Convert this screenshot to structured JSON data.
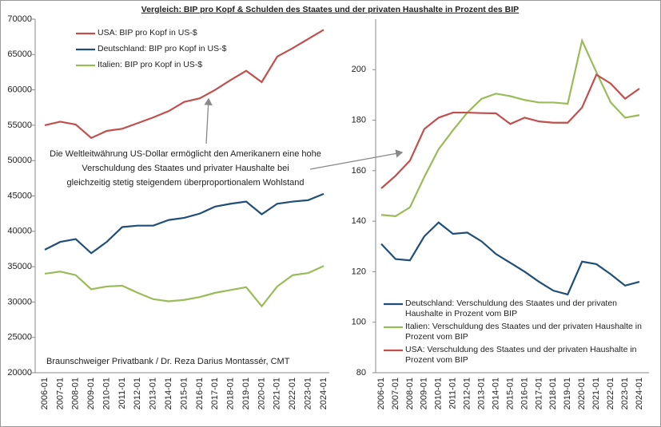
{
  "title": "Vergleich: BIP pro Kopf & Schulden des Staates und der privaten Haushalte in Prozent des BIP",
  "chart_data": [
    {
      "type": "line",
      "categories": [
        "2006-01",
        "2007-01",
        "2008-01",
        "2009-01",
        "2010-01",
        "2011-01",
        "2012-01",
        "2013-01",
        "2014-01",
        "2015-01",
        "2016-01",
        "2017-01",
        "2018-01",
        "2019-01",
        "2020-01",
        "2021-01",
        "2022-01",
        "2023-01",
        "2024-01"
      ],
      "series": [
        {
          "name": "USA: BIP pro Kopf in US-$",
          "color": "#c0504d",
          "values": [
            55000,
            55500,
            55100,
            53200,
            54200,
            54500,
            55300,
            56100,
            57000,
            58300,
            58800,
            60000,
            61400,
            62700,
            61100,
            64700,
            65900,
            67200,
            68500
          ]
        },
        {
          "name": "Deutschland: BIP pro Kopf in US-$",
          "color": "#1f4e79",
          "values": [
            37400,
            38500,
            38900,
            36900,
            38500,
            40600,
            40800,
            40800,
            41600,
            41900,
            42500,
            43500,
            43900,
            44200,
            42400,
            43900,
            44200,
            44400,
            45300
          ]
        },
        {
          "name": "Italien: BIP pro Kopf in US-$",
          "color": "#9bbb59",
          "values": [
            34000,
            34300,
            33800,
            31800,
            32200,
            32300,
            31300,
            30400,
            30100,
            30300,
            30700,
            31300,
            31700,
            32100,
            29400,
            32200,
            33800,
            34100,
            35100
          ]
        }
      ],
      "ylim": [
        20000,
        70000
      ],
      "yticks": [
        20000,
        25000,
        30000,
        35000,
        40000,
        45000,
        50000,
        55000,
        60000,
        65000,
        70000
      ],
      "grid": false,
      "legend": "top-left",
      "annotation": [
        "Die Weltleitwährung US-Dollar ermöglicht den Amerikanern eine hohe",
        "Verschuldung des Staates und privater Haushalte bei",
        "gleichzeitig stetig steigendem überproportionalem Wohlstand"
      ],
      "source": "Braunschweiger Privatbank / Dr. Reza Darius Montassér, CMT"
    },
    {
      "type": "line",
      "categories": [
        "2006-01",
        "2007-01",
        "2008-01",
        "2009-01",
        "2010-01",
        "2011-01",
        "2012-01",
        "2013-01",
        "2014-01",
        "2015-01",
        "2016-01",
        "2017-01",
        "2018-01",
        "2019-01",
        "2020-01",
        "2021-01",
        "2022-01",
        "2023-01",
        "2024-01"
      ],
      "series": [
        {
          "name": "Deutschland: Verschuldung des Staates und der privaten Haushalte in Prozent vom BIP",
          "color": "#1f4e79",
          "values": [
            131,
            125,
            124.5,
            134,
            139.5,
            135,
            135.5,
            132,
            127,
            123.5,
            120,
            116,
            112.5,
            111,
            124,
            123,
            119,
            114.5,
            116
          ]
        },
        {
          "name": "Italien: Verschuldung des Staates und der privaten Haushalte in Prozent vom BIP",
          "color": "#9bbb59",
          "values": [
            142.5,
            142,
            145.5,
            157.5,
            168.5,
            176,
            183,
            188.5,
            190.5,
            189.5,
            188,
            187,
            187,
            186.5,
            211.5,
            199,
            187,
            181,
            182
          ]
        },
        {
          "name": "USA: Verschuldung des Staates und der privaten Haushalte in Prozent vom BIP",
          "color": "#c0504d",
          "values": [
            153,
            158,
            164,
            176.5,
            181,
            183,
            183,
            182.8,
            182.7,
            178.5,
            181,
            179.5,
            179,
            179,
            185,
            198,
            194.5,
            188.5,
            192.5
          ]
        }
      ],
      "ylim": [
        80,
        220
      ],
      "yticks": [
        80,
        100,
        120,
        140,
        160,
        180,
        200
      ],
      "grid": false,
      "legend": "bottom-left"
    }
  ]
}
